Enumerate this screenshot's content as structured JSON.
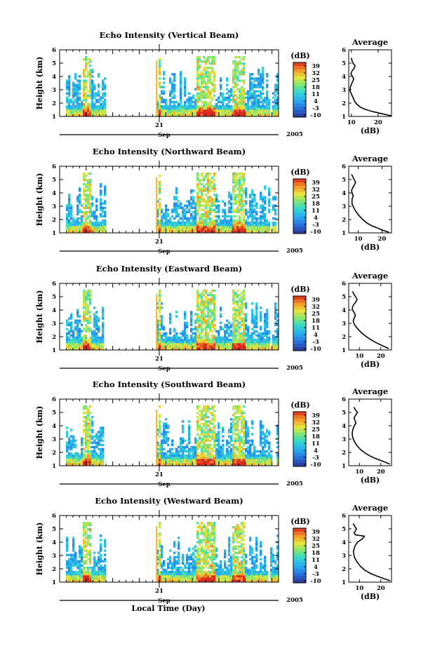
{
  "chart_data": [
    {
      "type": "heatmap",
      "title": "Echo Intensity (Vertical Beam)",
      "ylabel": "Height (km)",
      "ylim": [
        1,
        6
      ],
      "yticks": [
        "1",
        "2",
        "3",
        "4",
        "5",
        "6"
      ],
      "xtick_label": "21",
      "month": "Sep",
      "year": "2005",
      "colorbar": {
        "unit": "(dB)",
        "ticks": [
          "39",
          "32",
          "25",
          "18",
          "11",
          "4",
          "-3",
          "-10"
        ],
        "range": [
          -10,
          39
        ]
      },
      "grid": false
    },
    {
      "type": "heatmap",
      "title": "Echo Intensity (Northward Beam)",
      "ylabel": "Height (km)",
      "ylim": [
        1,
        6
      ],
      "yticks": [
        "1",
        "2",
        "3",
        "4",
        "5",
        "6"
      ],
      "xtick_label": "21",
      "month": "Sep",
      "year": "2005",
      "colorbar": {
        "unit": "(dB)",
        "ticks": [
          "39",
          "32",
          "25",
          "18",
          "11",
          "4",
          "-3",
          "-10"
        ],
        "range": [
          -10,
          39
        ]
      },
      "grid": false
    },
    {
      "type": "heatmap",
      "title": "Echo Intensity (Eastward Beam)",
      "ylabel": "Height (km)",
      "ylim": [
        1,
        6
      ],
      "yticks": [
        "1",
        "2",
        "3",
        "4",
        "5",
        "6"
      ],
      "xtick_label": "21",
      "month": "Sep",
      "year": "2005",
      "colorbar": {
        "unit": "(dB)",
        "ticks": [
          "39",
          "32",
          "25",
          "18",
          "11",
          "4",
          "-3",
          "-10"
        ],
        "range": [
          -10,
          39
        ]
      },
      "grid": false
    },
    {
      "type": "heatmap",
      "title": "Echo Intensity (Southward Beam)",
      "ylabel": "Height (km)",
      "ylim": [
        1,
        6
      ],
      "yticks": [
        "1",
        "2",
        "3",
        "4",
        "5",
        "6"
      ],
      "xtick_label": "21",
      "month": "Sep",
      "year": "2005",
      "colorbar": {
        "unit": "(dB)",
        "ticks": [
          "39",
          "32",
          "25",
          "18",
          "11",
          "4",
          "-3",
          "-10"
        ],
        "range": [
          -10,
          39
        ]
      },
      "grid": false
    },
    {
      "type": "heatmap",
      "title": "Echo Intensity (Westward Beam)",
      "ylabel": "Height (km)",
      "ylim": [
        1,
        6
      ],
      "yticks": [
        "1",
        "2",
        "3",
        "4",
        "5",
        "6"
      ],
      "xtick_label": "21",
      "month": "Sep",
      "year": "2005",
      "xlabel": "Local Time (Day)",
      "colorbar": {
        "unit": "(dB)",
        "ticks": [
          "39",
          "32",
          "25",
          "18",
          "11",
          "4",
          "-3",
          "-10"
        ],
        "range": [
          -10,
          39
        ]
      },
      "grid": false
    },
    {
      "type": "line",
      "title": "Average",
      "xlabel": "(dB)",
      "ylabel": "",
      "xlim": [
        9,
        25
      ],
      "xticks": [
        10,
        20
      ],
      "ylim": [
        1,
        6
      ],
      "yticks": [
        1,
        2,
        3,
        4,
        5,
        6
      ],
      "x": [
        10,
        10.2,
        10.6,
        11.4,
        11,
        10.2,
        9.8,
        10.4,
        10.9,
        10.2,
        9.6,
        9.5,
        10.2,
        10.9,
        11.3,
        12.1,
        13.3,
        15,
        17.2,
        19.8,
        22.6,
        25
      ],
      "y": [
        5.4,
        5.2,
        5,
        4.8,
        4.6,
        4.4,
        4.2,
        4,
        3.8,
        3.5,
        3.2,
        2.9,
        2.6,
        2.3,
        2.1,
        1.9,
        1.7,
        1.55,
        1.4,
        1.28,
        1.15,
        1.05
      ]
    },
    {
      "type": "line",
      "title": "Average",
      "xlabel": "(dB)",
      "ylabel": "",
      "xlim": [
        6,
        24
      ],
      "xticks": [
        10,
        20
      ],
      "ylim": [
        1,
        6
      ],
      "yticks": [
        1,
        2,
        3,
        4,
        5,
        6
      ],
      "x": [
        7.2,
        7.7,
        8.3,
        8.9,
        8.4,
        7.7,
        7.2,
        7.4,
        7.9,
        7.4,
        7.4,
        8.1,
        9,
        10.3,
        11.9,
        13.6,
        15.5,
        17.8,
        20.3,
        23
      ],
      "y": [
        5.4,
        5.2,
        5,
        4.8,
        4.6,
        4.4,
        4.2,
        4,
        3.8,
        3.5,
        3.2,
        2.9,
        2.6,
        2.3,
        2,
        1.75,
        1.55,
        1.38,
        1.2,
        1.05
      ]
    },
    {
      "type": "line",
      "title": "Average",
      "xlabel": "(dB)",
      "ylabel": "",
      "xlim": [
        5,
        25
      ],
      "xticks": [
        10,
        20
      ],
      "ylim": [
        1,
        6
      ],
      "yticks": [
        1,
        2,
        3,
        4,
        5,
        6
      ],
      "x": [
        6.8,
        7.4,
        8.2,
        8.9,
        8.3,
        7.3,
        6.7,
        6.8,
        7.6,
        8.1,
        7.6,
        7.1,
        7.4,
        8.1,
        9.1,
        10.6,
        12.4,
        14.6,
        17.2,
        20.4,
        23.8
      ],
      "y": [
        5.4,
        5.2,
        5,
        4.8,
        4.6,
        4.4,
        4.2,
        4,
        3.8,
        3.6,
        3.4,
        3.2,
        3,
        2.8,
        2.6,
        2.35,
        2.1,
        1.85,
        1.6,
        1.35,
        1.1
      ]
    },
    {
      "type": "line",
      "title": "Average",
      "xlabel": "(dB)",
      "ylabel": "",
      "xlim": [
        5,
        25
      ],
      "xticks": [
        10,
        20
      ],
      "ylim": [
        1,
        6
      ],
      "yticks": [
        1,
        2,
        3,
        4,
        5,
        6
      ],
      "x": [
        7.4,
        8.1,
        9.1,
        8.3,
        7.5,
        7.9,
        8.4,
        7.6,
        6.9,
        6.6,
        6.9,
        7.7,
        8.9,
        10.6,
        12.7,
        15.3,
        18.2,
        21.5,
        24.2
      ],
      "y": [
        5.4,
        5.2,
        5,
        4.8,
        4.6,
        4.4,
        4.2,
        4,
        3.7,
        3.4,
        3.1,
        2.8,
        2.5,
        2.2,
        1.95,
        1.7,
        1.5,
        1.3,
        1.12
      ]
    },
    {
      "type": "line",
      "title": "Average",
      "xlabel": "(dB)",
      "ylabel": "",
      "xlim": [
        5,
        25
      ],
      "xticks": [
        10,
        20
      ],
      "ylim": [
        1,
        6
      ],
      "yticks": [
        1,
        2,
        3,
        4,
        5,
        6
      ],
      "x": [
        7.1,
        7.8,
        8.6,
        8.1,
        7.5,
        8.1,
        12.3,
        11.4,
        9.1,
        7.9,
        7.2,
        7.6,
        8.7,
        10.4,
        12.5,
        15.2,
        18.3,
        21.7,
        24.4
      ],
      "y": [
        5.4,
        5.2,
        5,
        4.85,
        4.7,
        4.55,
        4.45,
        4.25,
        4,
        3.7,
        3.3,
        2.9,
        2.55,
        2.2,
        1.9,
        1.65,
        1.45,
        1.25,
        1.1
      ]
    }
  ]
}
